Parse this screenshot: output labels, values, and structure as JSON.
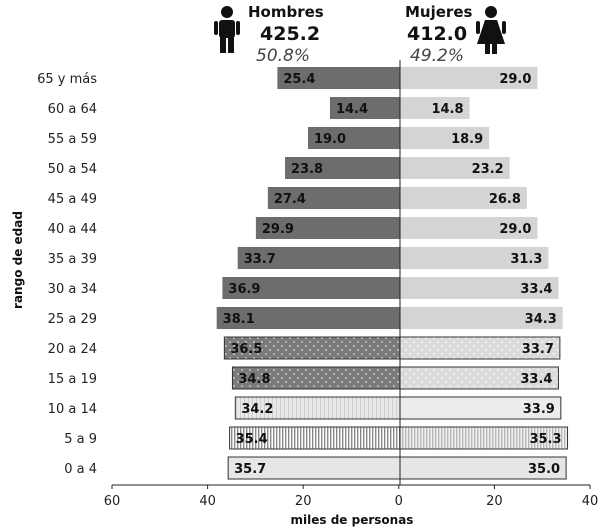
{
  "chart_data": {
    "type": "bar",
    "orientation": "horizontal-population-pyramid",
    "categories": [
      "65 y más",
      "60 a 64",
      "55 a 59",
      "50 a 54",
      "45 a 49",
      "40 a 44",
      "35 a 39",
      "30 a 34",
      "25 a 29",
      "20 a 24",
      "15 a 19",
      "10 a 14",
      "5 a 9",
      "0 a 4"
    ],
    "series": [
      {
        "name": "Hombres",
        "side": "left",
        "values": [
          25.4,
          14.4,
          19.0,
          23.8,
          27.4,
          29.9,
          33.7,
          36.9,
          38.1,
          36.5,
          34.8,
          34.2,
          35.4,
          35.7
        ],
        "labels": [
          "25.4",
          "14.4",
          "19.0",
          "23.8",
          "27.4",
          "29.9",
          "33.7",
          "36.9",
          "38.1",
          "36.5",
          "34.8",
          "34.2",
          "35.4",
          "35.7"
        ]
      },
      {
        "name": "Mujeres",
        "side": "right",
        "values": [
          29.0,
          14.8,
          18.9,
          23.2,
          26.8,
          29.0,
          31.3,
          33.4,
          34.3,
          33.7,
          33.4,
          33.9,
          35.3,
          35.0
        ],
        "labels": [
          "29.0",
          "14.8",
          "18.9",
          "23.2",
          "26.8",
          "29.0",
          "31.3",
          "33.4",
          "34.3",
          "33.7",
          "33.4",
          "33.9",
          "35.3",
          "35.0"
        ]
      }
    ],
    "totals": {
      "hombres": {
        "label": "Hombres",
        "value": "425.2",
        "pct": "50.8%"
      },
      "mujeres": {
        "label": "Mujeres",
        "value": "412.0",
        "pct": "49.2%"
      }
    },
    "xlabel": "miles de personas",
    "ylabel": "rango de edad",
    "xlim": [
      -60,
      40
    ],
    "xticks": [
      -60,
      -40,
      -20,
      0,
      20,
      40
    ],
    "xtick_labels": [
      "60",
      "40",
      "20",
      "0",
      "20",
      "40"
    ],
    "grid": false,
    "colors": {
      "hombres_solid": "#6d6d6d",
      "mujeres_solid": "#d4d4d4",
      "pattern_dark": "#7a7a7a",
      "pattern_light": "#d9d9d9",
      "light_fill": "#e6e6e6",
      "outline": "#333333"
    }
  }
}
